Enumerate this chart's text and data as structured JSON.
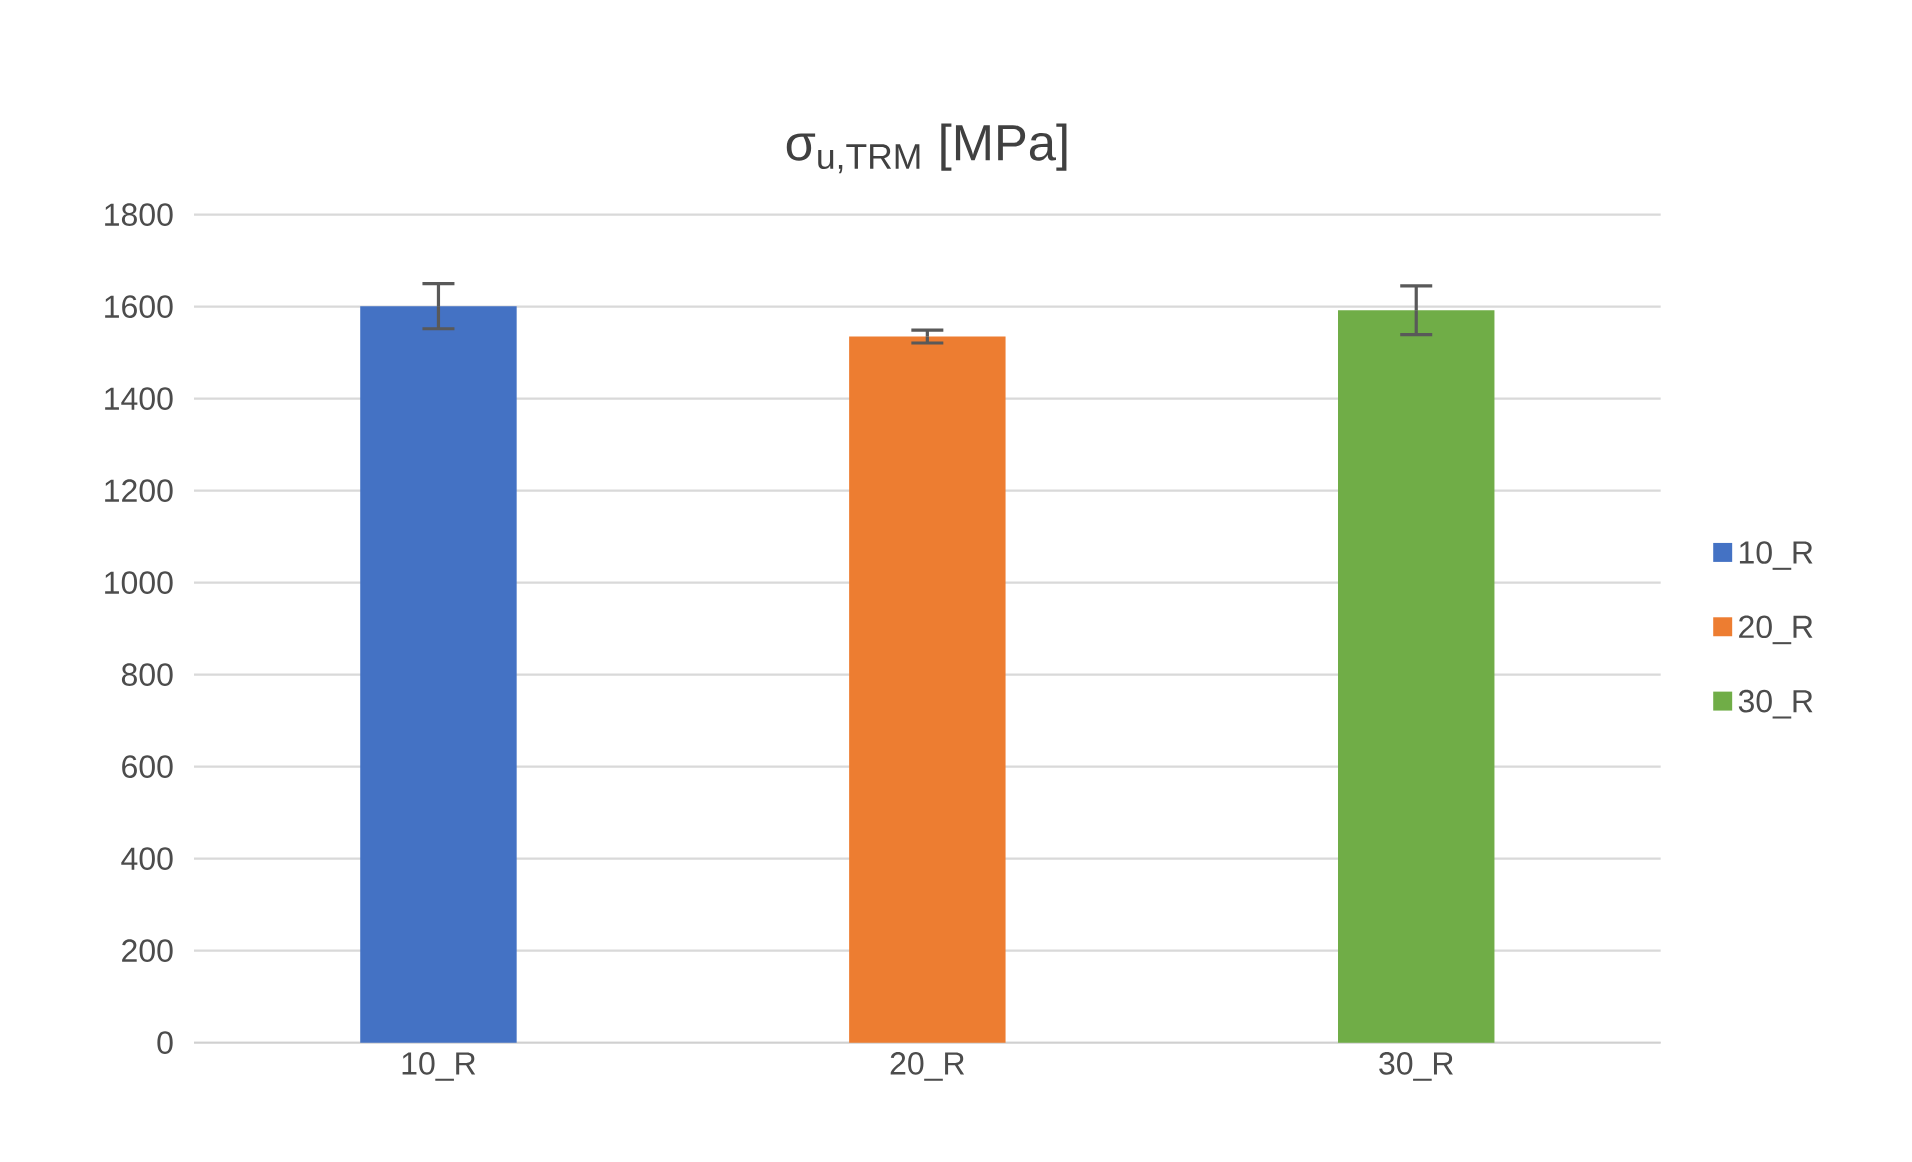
{
  "chart_data": {
    "type": "bar",
    "title": "σ$_{u,TRM}$ [MPa]",
    "categories": [
      "10_R",
      "20_R",
      "30_R"
    ],
    "series": [
      {
        "name": "10_R",
        "color": "#4472c4",
        "values": [
          1601,
          null,
          null
        ],
        "errors": [
          49,
          null,
          null
        ]
      },
      {
        "name": "20_R",
        "color": "#ed7d31",
        "values": [
          null,
          1535,
          null
        ],
        "errors": [
          null,
          14,
          null
        ]
      },
      {
        "name": "30_R",
        "color": "#70ad47",
        "values": [
          null,
          null,
          1592
        ],
        "errors": [
          null,
          null,
          53
        ]
      }
    ],
    "ylim": [
      0,
      1800
    ],
    "yticks": [
      0,
      200,
      400,
      600,
      800,
      1000,
      1200,
      1400,
      1600,
      1800
    ],
    "grid": "y",
    "legend": "right"
  }
}
